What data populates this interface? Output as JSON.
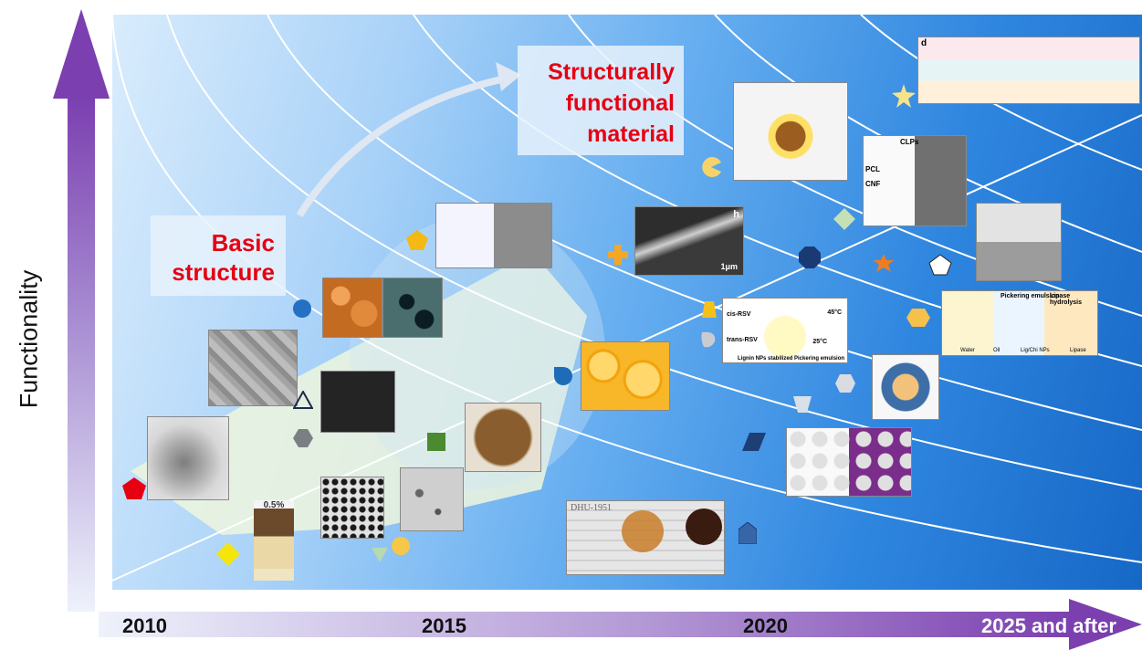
{
  "axes": {
    "y_label": "Functionality",
    "x_ticks": [
      "2010",
      "2015",
      "2020",
      "2025 and after"
    ]
  },
  "callouts": {
    "basic": [
      "Basic",
      "structure"
    ],
    "structural": [
      "Structurally",
      "functional",
      "material"
    ]
  },
  "colors": {
    "callout_text": "#e60012",
    "arrow_purple": "#7b3fb0"
  },
  "figure_insets": {
    "lipase_panel": [
      "Pickering emulsion",
      "Lipase hydrolysis",
      "Water",
      "Oil",
      "Lig/Chi NPs",
      "Lipase"
    ],
    "resveratrol_panel": [
      "cis-RSV",
      "trans-RSV",
      "45°C",
      "25°C",
      "Lignin NPs stabilized Pickering emulsion"
    ],
    "clp_panel": [
      "CLPs",
      "PCL",
      "CNF"
    ],
    "sem_panel_scale": "1μm",
    "sem_panel_letter": "h",
    "jar_label": "0.5%",
    "dhu_text": "DHU-1951",
    "right_inset_letter": "d"
  }
}
